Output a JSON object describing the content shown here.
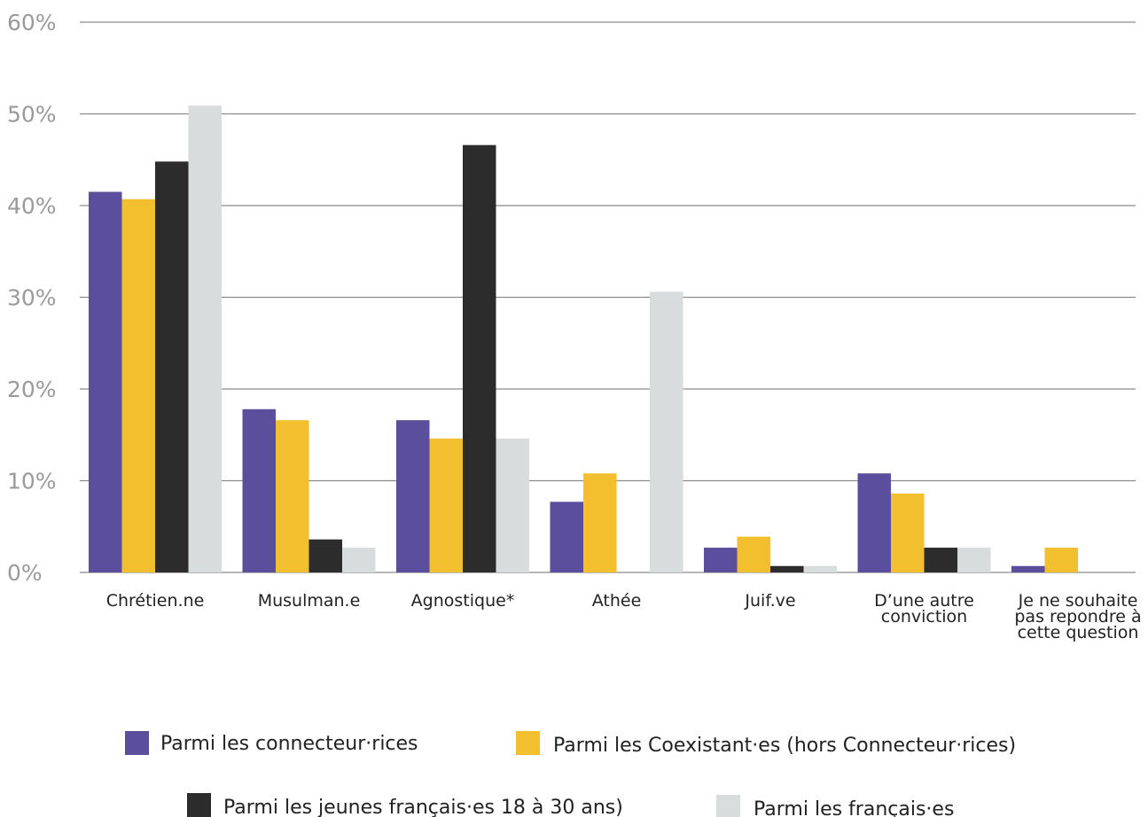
{
  "chart_data": {
    "type": "bar",
    "categories": [
      [
        "Chrétien.ne"
      ],
      [
        "Musulman.e"
      ],
      [
        "Agnostique*"
      ],
      [
        "Athée"
      ],
      [
        "Juif.ve"
      ],
      [
        "D’une autre",
        "conviction"
      ],
      [
        "Je ne souhaite",
        "pas repondre à",
        "cette question"
      ]
    ],
    "ylim": [
      0,
      60
    ],
    "yticks": [
      "0%",
      "10%",
      "20%",
      "30%",
      "40%",
      "50%",
      "60%"
    ],
    "grid": true,
    "legend_position": "bottom",
    "series": [
      {
        "name": "Parmi les connecteur·rices",
        "color": "#5b4e9c",
        "values": [
          41.5,
          17.8,
          16.6,
          7.7,
          2.7,
          10.8,
          0.7
        ]
      },
      {
        "name": "Parmi les Coexistant·es (hors Connecteur·rices)",
        "color": "#f2bf2f",
        "values": [
          40.7,
          16.6,
          14.6,
          10.8,
          3.9,
          8.6,
          2.7
        ]
      },
      {
        "name": "Parmi les jeunes français·es 18 à 30 ans)",
        "color": "#2c2c2c",
        "values": [
          44.8,
          3.6,
          46.6,
          null,
          0.7,
          2.7,
          null
        ]
      },
      {
        "name": "Parmi les français·es",
        "color": "#d9dcdd",
        "values": [
          50.9,
          2.7,
          14.6,
          30.6,
          0.7,
          2.7,
          null
        ]
      }
    ]
  }
}
